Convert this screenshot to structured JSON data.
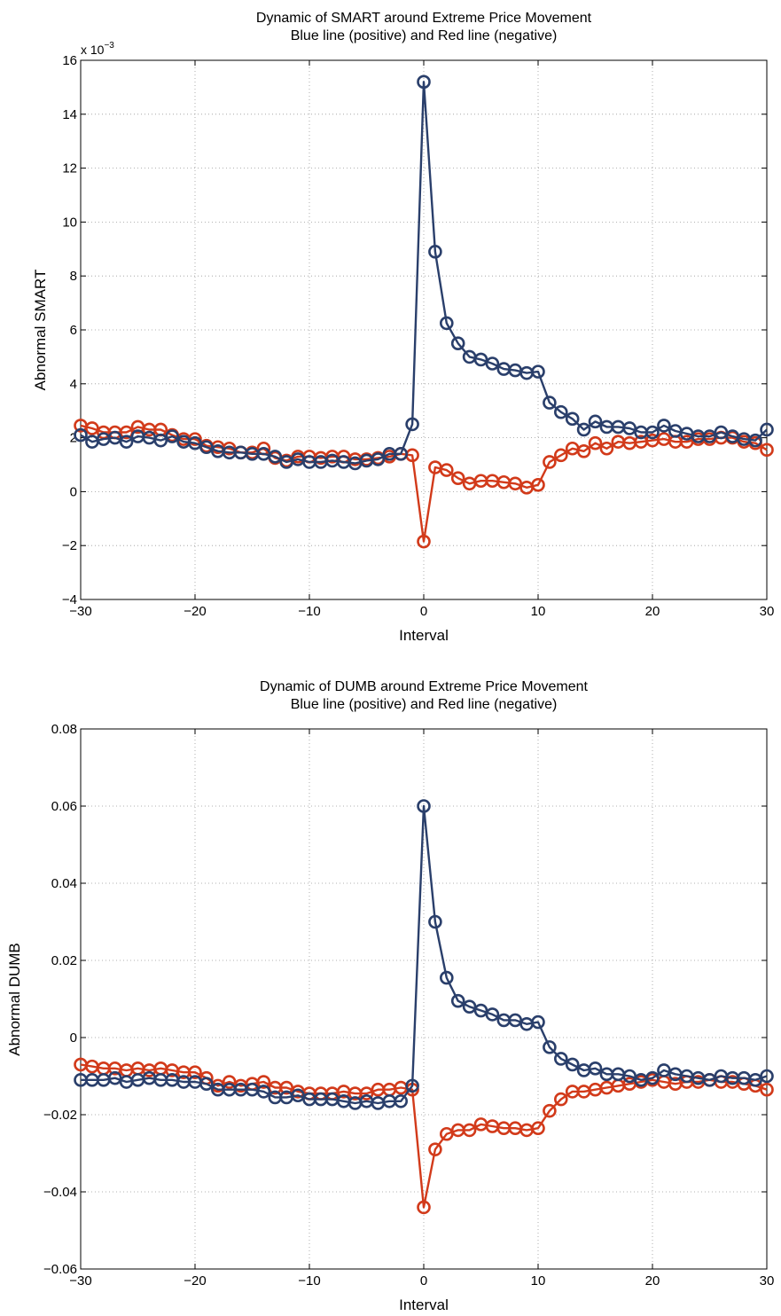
{
  "chart_data": [
    {
      "type": "line",
      "title": "Dynamic of SMART around Extreme Price Movement",
      "subtitle": "Blue line (positive) and Red line (negative)",
      "xlabel": "Interval",
      "ylabel": "Abnormal SMART",
      "exponent_label": "x 10",
      "exponent_power": "−3",
      "xlim": [
        -30,
        30
      ],
      "ylim": [
        -4,
        16
      ],
      "xticks": [
        -30,
        -20,
        -10,
        0,
        10,
        20,
        30
      ],
      "xtick_labels": [
        "−30",
        "−20",
        "−10",
        "0",
        "10",
        "20",
        "30"
      ],
      "yticks": [
        -4,
        -2,
        0,
        2,
        4,
        6,
        8,
        10,
        12,
        14,
        16
      ],
      "ytick_labels": [
        "−4",
        "−2",
        "0",
        "2",
        "4",
        "6",
        "8",
        "10",
        "12",
        "14",
        "16"
      ],
      "grid": true,
      "x": [
        -30,
        -29,
        -28,
        -27,
        -26,
        -25,
        -24,
        -23,
        -22,
        -21,
        -20,
        -19,
        -18,
        -17,
        -16,
        -15,
        -14,
        -13,
        -12,
        -11,
        -10,
        -9,
        -8,
        -7,
        -6,
        -5,
        -4,
        -3,
        -2,
        -1,
        0,
        1,
        2,
        3,
        4,
        5,
        6,
        7,
        8,
        9,
        10,
        11,
        12,
        13,
        14,
        15,
        16,
        17,
        18,
        19,
        20,
        21,
        22,
        23,
        24,
        25,
        26,
        27,
        28,
        29,
        30
      ],
      "series": [
        {
          "color": "#2a3f6b",
          "values": [
            2.1,
            1.85,
            1.95,
            2.0,
            1.85,
            2.05,
            2.0,
            1.9,
            2.05,
            1.85,
            1.8,
            1.65,
            1.5,
            1.45,
            1.45,
            1.4,
            1.4,
            1.3,
            1.1,
            1.2,
            1.1,
            1.1,
            1.15,
            1.1,
            1.05,
            1.15,
            1.2,
            1.4,
            1.4,
            2.5,
            15.2,
            8.9,
            6.25,
            5.5,
            5.0,
            4.9,
            4.75,
            4.55,
            4.5,
            4.4,
            4.45,
            3.3,
            2.95,
            2.7,
            2.3,
            2.6,
            2.4,
            2.4,
            2.35,
            2.2,
            2.2,
            2.45,
            2.25,
            2.15,
            2.05,
            2.05,
            2.2,
            2.05,
            1.95,
            1.9,
            2.3
          ]
        },
        {
          "color": "#d23a1a",
          "values": [
            2.45,
            2.35,
            2.2,
            2.2,
            2.2,
            2.4,
            2.3,
            2.3,
            2.1,
            1.95,
            1.95,
            1.7,
            1.65,
            1.6,
            1.45,
            1.45,
            1.6,
            1.25,
            1.15,
            1.3,
            1.3,
            1.25,
            1.3,
            1.3,
            1.2,
            1.2,
            1.25,
            1.3,
            1.4,
            1.35,
            -1.85,
            0.9,
            0.8,
            0.5,
            0.3,
            0.4,
            0.4,
            0.35,
            0.3,
            0.15,
            0.25,
            1.1,
            1.35,
            1.6,
            1.5,
            1.8,
            1.6,
            1.85,
            1.8,
            1.85,
            1.9,
            1.95,
            1.85,
            1.85,
            1.95,
            1.95,
            2.0,
            2.0,
            1.85,
            1.8,
            1.55
          ]
        }
      ]
    },
    {
      "type": "line",
      "title": "Dynamic of DUMB around Extreme Price Movement",
      "subtitle": "Blue line (positive) and Red line (negative)",
      "xlabel": "Interval",
      "ylabel": "Abnormal DUMB",
      "xlim": [
        -30,
        30
      ],
      "ylim": [
        -0.06,
        0.08
      ],
      "xticks": [
        -30,
        -20,
        -10,
        0,
        10,
        20,
        30
      ],
      "xtick_labels": [
        "−30",
        "−20",
        "−10",
        "0",
        "10",
        "20",
        "30"
      ],
      "yticks": [
        -0.06,
        -0.04,
        -0.02,
        0,
        0.02,
        0.04,
        0.06,
        0.08
      ],
      "ytick_labels": [
        "−0.06",
        "−0.04",
        "−0.02",
        "0",
        "0.02",
        "0.04",
        "0.06",
        "0.08"
      ],
      "grid": true,
      "x": [
        -30,
        -29,
        -28,
        -27,
        -26,
        -25,
        -24,
        -23,
        -22,
        -21,
        -20,
        -19,
        -18,
        -17,
        -16,
        -15,
        -14,
        -13,
        -12,
        -11,
        -10,
        -9,
        -8,
        -7,
        -6,
        -5,
        -4,
        -3,
        -2,
        -1,
        0,
        1,
        2,
        3,
        4,
        5,
        6,
        7,
        8,
        9,
        10,
        11,
        12,
        13,
        14,
        15,
        16,
        17,
        18,
        19,
        20,
        21,
        22,
        23,
        24,
        25,
        26,
        27,
        28,
        29,
        30
      ],
      "series": [
        {
          "color": "#2a3f6b",
          "values": [
            -0.011,
            -0.011,
            -0.011,
            -0.0105,
            -0.0115,
            -0.011,
            -0.0105,
            -0.011,
            -0.011,
            -0.0115,
            -0.0115,
            -0.012,
            -0.0135,
            -0.0135,
            -0.0135,
            -0.0135,
            -0.014,
            -0.0155,
            -0.0155,
            -0.015,
            -0.016,
            -0.016,
            -0.016,
            -0.0165,
            -0.017,
            -0.0165,
            -0.017,
            -0.0165,
            -0.0165,
            -0.0125,
            0.06,
            0.03,
            0.0155,
            0.0095,
            0.008,
            0.007,
            0.006,
            0.0045,
            0.0045,
            0.0035,
            0.004,
            -0.0025,
            -0.0055,
            -0.007,
            -0.0085,
            -0.008,
            -0.0095,
            -0.0095,
            -0.01,
            -0.011,
            -0.0105,
            -0.0085,
            -0.0095,
            -0.01,
            -0.0105,
            -0.011,
            -0.01,
            -0.0105,
            -0.0105,
            -0.011,
            -0.01
          ]
        },
        {
          "color": "#d23a1a",
          "values": [
            -0.007,
            -0.0075,
            -0.008,
            -0.008,
            -0.0085,
            -0.008,
            -0.0085,
            -0.008,
            -0.0085,
            -0.009,
            -0.009,
            -0.0105,
            -0.0125,
            -0.0115,
            -0.0125,
            -0.012,
            -0.0115,
            -0.013,
            -0.013,
            -0.014,
            -0.0145,
            -0.0145,
            -0.0145,
            -0.014,
            -0.0145,
            -0.0145,
            -0.0135,
            -0.0135,
            -0.013,
            -0.0135,
            -0.044,
            -0.029,
            -0.025,
            -0.024,
            -0.024,
            -0.0225,
            -0.023,
            -0.0235,
            -0.0235,
            -0.024,
            -0.0235,
            -0.019,
            -0.016,
            -0.014,
            -0.014,
            -0.0135,
            -0.013,
            -0.0125,
            -0.012,
            -0.0115,
            -0.011,
            -0.0115,
            -0.012,
            -0.0115,
            -0.0115,
            -0.011,
            -0.0115,
            -0.0115,
            -0.012,
            -0.0125,
            -0.0135
          ]
        }
      ]
    }
  ]
}
